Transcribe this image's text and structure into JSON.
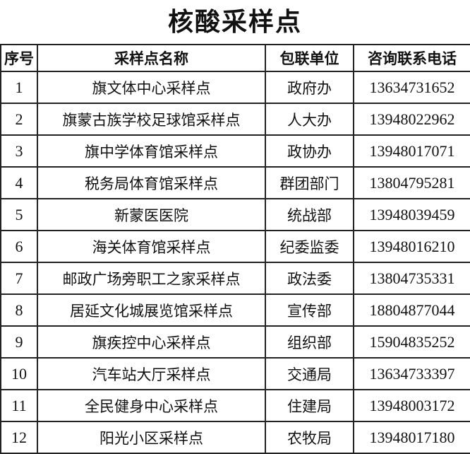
{
  "title": "核酸采样点",
  "columns": [
    "序号",
    "采样点名称",
    "包联单位",
    "咨询联系电话"
  ],
  "rows": [
    {
      "no": "1",
      "name": "旗文体中心采样点",
      "unit": "政府办",
      "phone": "13634731652"
    },
    {
      "no": "2",
      "name": "旗蒙古族学校足球馆采样点",
      "unit": "人大办",
      "phone": "13948022962"
    },
    {
      "no": "3",
      "name": "旗中学体育馆采样点",
      "unit": "政协办",
      "phone": "13948017071"
    },
    {
      "no": "4",
      "name": "税务局体育馆采样点",
      "unit": "群团部门",
      "phone": "13804795281"
    },
    {
      "no": "5",
      "name": "新蒙医医院",
      "unit": "统战部",
      "phone": "13948039459"
    },
    {
      "no": "6",
      "name": "海关体育馆采样点",
      "unit": "纪委监委",
      "phone": "13948016210"
    },
    {
      "no": "7",
      "name": "邮政广场旁职工之家采样点",
      "unit": "政法委",
      "phone": "13804735331"
    },
    {
      "no": "8",
      "name": "居延文化城展览馆采样点",
      "unit": "宣传部",
      "phone": "18804877044"
    },
    {
      "no": "9",
      "name": "旗疾控中心采样点",
      "unit": "组织部",
      "phone": "15904835252"
    },
    {
      "no": "10",
      "name": "汽车站大厅采样点",
      "unit": "交通局",
      "phone": "13634733397"
    },
    {
      "no": "11",
      "name": "全民健身中心采样点",
      "unit": "住建局",
      "phone": "13948003172"
    },
    {
      "no": "12",
      "name": "阳光小区采样点",
      "unit": "农牧局",
      "phone": "13948017180"
    }
  ]
}
